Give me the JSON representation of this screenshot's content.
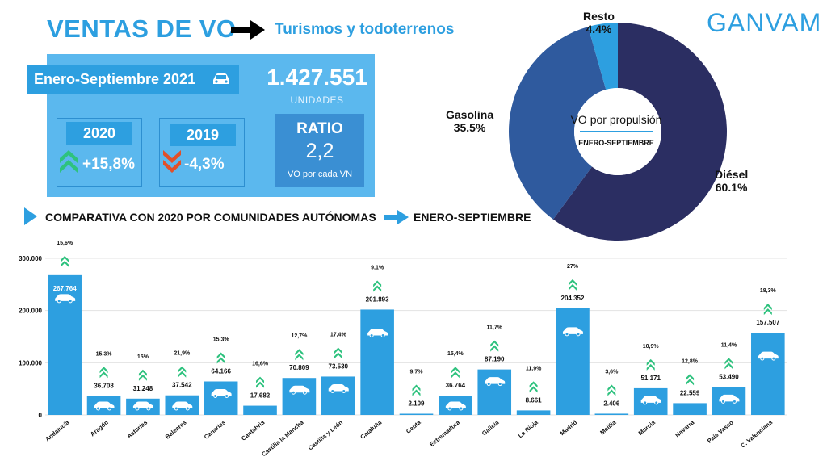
{
  "header": {
    "title": "VENTAS DE VO",
    "subtitle": "Turismos y todoterrenos",
    "logo": "GANVAM"
  },
  "summary": {
    "period": "Enero-Septiembre 2021",
    "total_units": "1.427.551",
    "units_label": "UNIDADES",
    "cards": [
      {
        "year": "2020",
        "change": "+15,8%",
        "direction": "up",
        "color": "#2ec27e"
      },
      {
        "year": "2019",
        "change": "-4,3%",
        "direction": "down",
        "color": "#e0502a"
      }
    ],
    "ratio": {
      "title": "RATIO",
      "value": "2,2",
      "label": "VO por cada VN"
    }
  },
  "section": {
    "left": "COMPARATIVA CON 2020 POR COMUNIDADES AUTÓNOMAS",
    "right": "ENERO-SEPTIEMBRE"
  },
  "pie": {
    "center_title": "VO por propulsión",
    "center_subtitle": "ENERO-SEPTIEMBRE",
    "slices": [
      {
        "name": "Diésel",
        "pct_label": "60.1%",
        "value": 60.1,
        "color": "#2b2e62"
      },
      {
        "name": "Gasolina",
        "pct_label": "35.5%",
        "value": 35.5,
        "color": "#2f5a9e"
      },
      {
        "name": "Resto",
        "pct_label": "4.4%",
        "value": 4.4,
        "color": "#2d9fe0"
      }
    ]
  },
  "colors": {
    "accent": "#2d9fe0",
    "bar": "#2d9fe0",
    "growth": "#2ec27e",
    "decline": "#e0502a"
  },
  "chart_data": {
    "type": "bar",
    "categories": [
      "Andalucía",
      "Aragón",
      "Asturias",
      "Baleares",
      "Canarias",
      "Cantabria",
      "Castilla la Mancha",
      "Castilla y León",
      "Cataluña",
      "Ceuta",
      "Extremadura",
      "Galicia",
      "La Rioja",
      "Madrid",
      "Melilla",
      "Murcia",
      "Navarra",
      "País Vasco",
      "C. Valenciana"
    ],
    "values": [
      267764,
      36708,
      31248,
      37542,
      64166,
      17682,
      70809,
      73530,
      201893,
      2109,
      36764,
      87190,
      8661,
      204352,
      2406,
      51171,
      22559,
      53490,
      157507
    ],
    "value_labels": [
      "267.764",
      "36.708",
      "31.248",
      "37.542",
      "64.166",
      "17.682",
      "70.809",
      "73.530",
      "201.893",
      "2.109",
      "36.764",
      "87.190",
      "8.661",
      "204.352",
      "2.406",
      "51.171",
      "22.559",
      "53.490",
      "157.507"
    ],
    "growth_labels": [
      "15,6%",
      "15,3%",
      "15%",
      "21,9%",
      "15,3%",
      "16,6%",
      "12,7%",
      "17,4%",
      "9,1%",
      "9,7%",
      "15,4%",
      "11,7%",
      "11,9%",
      "27%",
      "3,6%",
      "10,9%",
      "12,8%",
      "11,4%",
      "18,3%"
    ],
    "y_ticks": [
      "0",
      "100.000",
      "200.000",
      "300.000"
    ],
    "y_tick_values": [
      0,
      100000,
      200000,
      300000
    ],
    "ylim": [
      0,
      300000
    ],
    "grid": true
  }
}
